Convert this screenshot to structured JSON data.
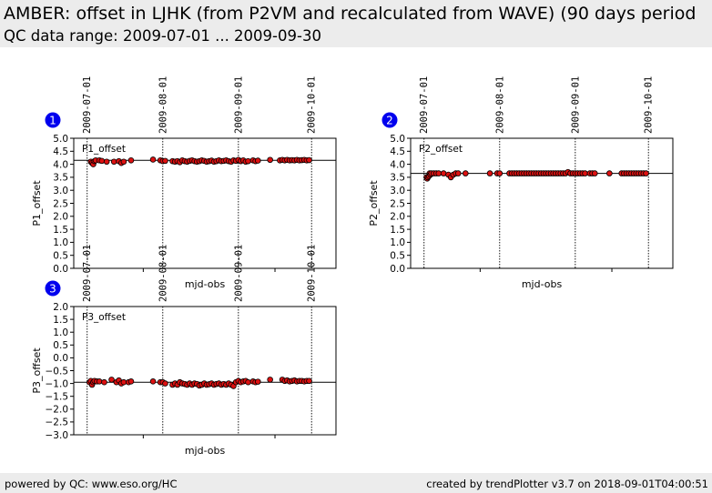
{
  "header": {
    "title": "AMBER: offset in LJHK (from P2VM and recalculated from WAVE) (90 days period",
    "subtitle": "QC data range: 2009-07-01 ... 2009-09-30"
  },
  "footer": {
    "left": "powered by QC: www.eso.org/HC",
    "right": "created by trendPlotter v3.7 on 2018-09-01T04:00:51"
  },
  "colors": {
    "marker_fill": "#dd1111",
    "badge": "#0000ee",
    "reference_line": "#000000"
  },
  "chart_data": [
    {
      "type": "scatter",
      "badge": "1",
      "name_label": "P1_offset",
      "xlabel": "mjd-obs",
      "ylabel": "P1_offset",
      "date_ticks": [
        "2009-07-01",
        "2009-08-01",
        "2009-09-01",
        "2009-10-01"
      ],
      "ylim": [
        0.0,
        5.0
      ],
      "yticks": [
        "0.0",
        "0.5",
        "1.0",
        "1.5",
        "2.0",
        "2.5",
        "3.0",
        "3.5",
        "4.0",
        "4.5",
        "5.0"
      ],
      "reference_value": 4.15,
      "points": [
        [
          1.5,
          4.1
        ],
        [
          2,
          4.05
        ],
        [
          2.5,
          4.0
        ],
        [
          3,
          4.12
        ],
        [
          3.5,
          4.15
        ],
        [
          5,
          4.15
        ],
        [
          6,
          4.13
        ],
        [
          8,
          4.1
        ],
        [
          11,
          4.1
        ],
        [
          13,
          4.12
        ],
        [
          14,
          4.05
        ],
        [
          15,
          4.1
        ],
        [
          18,
          4.15
        ],
        [
          27,
          4.18
        ],
        [
          30,
          4.15
        ],
        [
          31,
          4.12
        ],
        [
          32,
          4.13
        ],
        [
          35,
          4.12
        ],
        [
          36,
          4.1
        ],
        [
          37,
          4.12
        ],
        [
          38,
          4.08
        ],
        [
          39,
          4.15
        ],
        [
          40,
          4.12
        ],
        [
          41,
          4.1
        ],
        [
          42,
          4.13
        ],
        [
          43,
          4.15
        ],
        [
          44,
          4.12
        ],
        [
          45,
          4.1
        ],
        [
          46,
          4.12
        ],
        [
          47,
          4.15
        ],
        [
          48,
          4.13
        ],
        [
          49,
          4.1
        ],
        [
          50,
          4.12
        ],
        [
          51,
          4.14
        ],
        [
          52,
          4.1
        ],
        [
          53,
          4.12
        ],
        [
          54,
          4.15
        ],
        [
          55,
          4.12
        ],
        [
          56,
          4.13
        ],
        [
          57,
          4.15
        ],
        [
          58,
          4.12
        ],
        [
          59,
          4.1
        ],
        [
          60,
          4.15
        ],
        [
          61,
          4.13
        ],
        [
          62,
          4.17
        ],
        [
          63,
          4.12
        ],
        [
          64,
          4.15
        ],
        [
          65,
          4.1
        ],
        [
          66,
          4.12
        ],
        [
          68,
          4.15
        ],
        [
          69,
          4.12
        ],
        [
          70,
          4.14
        ],
        [
          75,
          4.17
        ],
        [
          79,
          4.15
        ],
        [
          80,
          4.17
        ],
        [
          81,
          4.15
        ],
        [
          82,
          4.17
        ],
        [
          83,
          4.15
        ],
        [
          84,
          4.16
        ],
        [
          85,
          4.15
        ],
        [
          86,
          4.17
        ],
        [
          87,
          4.15
        ],
        [
          88,
          4.16
        ],
        [
          89,
          4.17
        ],
        [
          90,
          4.15
        ],
        [
          91,
          4.16
        ]
      ]
    },
    {
      "type": "scatter",
      "badge": "2",
      "name_label": "P2_offset",
      "xlabel": "mjd-obs",
      "ylabel": "P2_offset",
      "date_ticks": [
        "2009-07-01",
        "2009-08-01",
        "2009-09-01",
        "2009-10-01"
      ],
      "ylim": [
        0.0,
        5.0
      ],
      "yticks": [
        "0.0",
        "0.5",
        "1.0",
        "1.5",
        "2.0",
        "2.5",
        "3.0",
        "3.5",
        "4.0",
        "4.5",
        "5.0"
      ],
      "reference_value": 3.65,
      "points": [
        [
          1,
          3.5
        ],
        [
          1.3,
          3.45
        ],
        [
          1.6,
          3.5
        ],
        [
          2,
          3.55
        ],
        [
          2.3,
          3.65
        ],
        [
          2.6,
          3.6
        ],
        [
          3,
          3.65
        ],
        [
          4,
          3.65
        ],
        [
          5,
          3.65
        ],
        [
          6,
          3.65
        ],
        [
          8,
          3.65
        ],
        [
          10,
          3.6
        ],
        [
          11,
          3.5
        ],
        [
          12,
          3.6
        ],
        [
          13,
          3.65
        ],
        [
          14,
          3.65
        ],
        [
          17,
          3.65
        ],
        [
          27,
          3.65
        ],
        [
          30,
          3.65
        ],
        [
          31,
          3.65
        ],
        [
          35,
          3.65
        ],
        [
          36,
          3.65
        ],
        [
          37,
          3.65
        ],
        [
          38,
          3.65
        ],
        [
          39,
          3.65
        ],
        [
          40,
          3.65
        ],
        [
          41,
          3.65
        ],
        [
          42,
          3.65
        ],
        [
          43,
          3.65
        ],
        [
          44,
          3.65
        ],
        [
          45,
          3.65
        ],
        [
          46,
          3.65
        ],
        [
          47,
          3.65
        ],
        [
          48,
          3.65
        ],
        [
          49,
          3.65
        ],
        [
          50,
          3.65
        ],
        [
          51,
          3.65
        ],
        [
          52,
          3.65
        ],
        [
          53,
          3.65
        ],
        [
          54,
          3.65
        ],
        [
          55,
          3.65
        ],
        [
          56,
          3.65
        ],
        [
          57,
          3.65
        ],
        [
          58,
          3.65
        ],
        [
          59,
          3.7
        ],
        [
          60,
          3.65
        ],
        [
          61,
          3.65
        ],
        [
          62,
          3.65
        ],
        [
          63,
          3.65
        ],
        [
          64,
          3.65
        ],
        [
          65,
          3.65
        ],
        [
          66,
          3.65
        ],
        [
          68,
          3.65
        ],
        [
          69,
          3.65
        ],
        [
          70,
          3.65
        ],
        [
          76,
          3.65
        ],
        [
          81,
          3.65
        ],
        [
          82,
          3.65
        ],
        [
          83,
          3.65
        ],
        [
          84,
          3.65
        ],
        [
          85,
          3.65
        ],
        [
          86,
          3.65
        ],
        [
          87,
          3.65
        ],
        [
          88,
          3.65
        ],
        [
          89,
          3.65
        ],
        [
          90,
          3.65
        ],
        [
          91,
          3.65
        ]
      ]
    },
    {
      "type": "scatter",
      "badge": "3",
      "name_label": "P3_offset",
      "xlabel": "mjd-obs",
      "ylabel": "P3_offset",
      "date_ticks": [
        "2009-07-01",
        "2009-08-01",
        "2009-09-01",
        "2009-10-01"
      ],
      "ylim": [
        -3.0,
        2.0
      ],
      "yticks": [
        "−3.0",
        "−2.5",
        "−2.0",
        "−1.5",
        "−1.0",
        "−0.5",
        "0.0",
        "0.5",
        "1.0",
        "1.5",
        "2.0"
      ],
      "reference_value": -0.95,
      "points": [
        [
          1,
          -0.95
        ],
        [
          1.5,
          -0.9
        ],
        [
          2,
          -1.05
        ],
        [
          2.5,
          -0.95
        ],
        [
          3,
          -0.9
        ],
        [
          4,
          -0.92
        ],
        [
          5,
          -0.92
        ],
        [
          7,
          -0.95
        ],
        [
          10,
          -0.85
        ],
        [
          12,
          -0.95
        ],
        [
          13,
          -0.88
        ],
        [
          14,
          -1.0
        ],
        [
          15,
          -0.95
        ],
        [
          17,
          -0.95
        ],
        [
          18,
          -0.92
        ],
        [
          27,
          -0.92
        ],
        [
          30,
          -0.95
        ],
        [
          31,
          -0.95
        ],
        [
          32,
          -1.0
        ],
        [
          35,
          -1.05
        ],
        [
          36,
          -1.0
        ],
        [
          37,
          -1.05
        ],
        [
          38,
          -0.95
        ],
        [
          39,
          -1.0
        ],
        [
          40,
          -1.02
        ],
        [
          41,
          -1.05
        ],
        [
          42,
          -1.0
        ],
        [
          43,
          -1.05
        ],
        [
          44,
          -1.0
        ],
        [
          45,
          -1.02
        ],
        [
          46,
          -1.08
        ],
        [
          47,
          -1.05
        ],
        [
          48,
          -1.0
        ],
        [
          49,
          -1.05
        ],
        [
          50,
          -1.03
        ],
        [
          51,
          -1.0
        ],
        [
          52,
          -1.05
        ],
        [
          53,
          -1.02
        ],
        [
          54,
          -1.0
        ],
        [
          55,
          -1.05
        ],
        [
          56,
          -1.02
        ],
        [
          57,
          -1.05
        ],
        [
          58,
          -1.0
        ],
        [
          59,
          -1.05
        ],
        [
          60,
          -1.1
        ],
        [
          61,
          -0.95
        ],
        [
          62,
          -0.9
        ],
        [
          63,
          -0.95
        ],
        [
          64,
          -0.92
        ],
        [
          65,
          -0.9
        ],
        [
          66,
          -0.95
        ],
        [
          68,
          -0.92
        ],
        [
          69,
          -0.95
        ],
        [
          70,
          -0.93
        ],
        [
          75,
          -0.85
        ],
        [
          80,
          -0.85
        ],
        [
          81,
          -0.9
        ],
        [
          82,
          -0.88
        ],
        [
          83,
          -0.92
        ],
        [
          84,
          -0.9
        ],
        [
          85,
          -0.88
        ],
        [
          86,
          -0.92
        ],
        [
          87,
          -0.9
        ],
        [
          88,
          -0.9
        ],
        [
          89,
          -0.92
        ],
        [
          90,
          -0.9
        ],
        [
          91,
          -0.9
        ]
      ]
    }
  ]
}
